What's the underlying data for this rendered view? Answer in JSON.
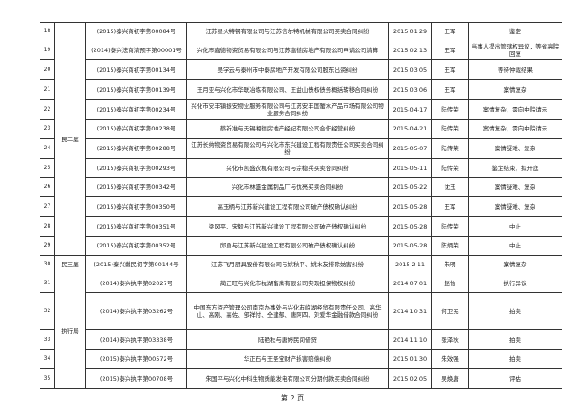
{
  "rows": [
    {
      "no": "18",
      "case": "(2015)泰兴商初字第00084号",
      "desc": "江苏星火特钢有限公司与江苏信尔特机械有限公司买卖合同纠纷",
      "date": "2015 01 29",
      "judge": "王军",
      "status": "鉴定"
    },
    {
      "no": "19",
      "case": "(2014)泰兴法商清预字第00001号",
      "desc": "兴化市嘉德物资贸易有限公司与江苏嘉德房地产有限公司申请公司清算",
      "date": "2015 02 13",
      "judge": "王军",
      "status": "当事人提出管辖权异议，等省高院回复"
    },
    {
      "no": "20",
      "case": "(2015)泰兴商初字第00134号",
      "desc": "吴学云与泰州市中泰房地产开发有限公司股东出资纠纷",
      "date": "2015 03 05",
      "judge": "王军",
      "status": "等待仲裁结果"
    },
    {
      "no": "21",
      "case": "(2015)泰兴商初字第00139号",
      "desc": "王月亚与兴化市华联冶炼有限公司、王益山债权债务概括转移合同纠纷",
      "date": "2015 03 06",
      "judge": "王军",
      "status": "案情复杂"
    },
    {
      "no": "22",
      "case": "(2015)泰兴商初字第00234号",
      "desc": "兴化市安丰镇振安物业服务有限公司与江苏安丰国蟹水产品市场有限公司物业服务合同纠纷",
      "date": "2015-04-17",
      "judge": "陆传荣",
      "status": "案情复杂，需向中院请示"
    },
    {
      "no": "23",
      "case": "(2015)泰兴商初字第00238号",
      "desc": "蔡祈准与无锡湘德房地产经纪有限公司合作经营纠纷",
      "date": "2015-04-21",
      "judge": "陆传荣",
      "status": "案情复杂，需向中院请示"
    },
    {
      "no": "24",
      "case": "(2015)泰兴商初字第00288号",
      "desc": "江苏长纳物资贸易有限公司与兴化市东兴建设工程有限责任公司买卖合同纠纷",
      "date": "2015-05-07",
      "judge": "陆传荣",
      "status": "案情疑难、复杂"
    },
    {
      "no": "25",
      "case": "(2015)泰兴商初字第00293号",
      "desc": "兴化市凯盛农机有限公司与宗稳兵买卖合同纠纷",
      "date": "2015-05-11",
      "judge": "陆传荣",
      "status": "鉴定结束，拟开庭"
    },
    {
      "no": "26",
      "case": "(2015)泰兴商初字第00342号",
      "desc": "兴化市林盛金属制品厂与优亮买卖合同纠纷",
      "date": "2015-05-22",
      "judge": "沈玉",
      "status": "案情疑难、复杂"
    },
    {
      "no": "27",
      "case": "(2015)泰兴商初字第00350号",
      "desc": "高玉柄与江苏新兴建设工程有限公司破产债权确认纠纷",
      "date": "2015-05-28",
      "judge": "王军",
      "status": "案情疑难、复杂"
    },
    {
      "no": "28",
      "case": "(2015)泰兴商初字第00351号",
      "desc": "梁风平、宋毅与江苏新兴建设工程有限公司破产债权确认纠纷",
      "date": "2015-05-28",
      "judge": "陆传荣",
      "status": "中止"
    },
    {
      "no": "29",
      "case": "(2015)泰兴商初字第00352号",
      "desc": "邱勇与江苏新兴建设工程有限公司破产债权确认纠纷",
      "date": "2015-05-28",
      "judge": "陈炳荣",
      "status": "中止"
    },
    {
      "no": "30",
      "case": "(2015)泰兴戴民初字第00144号",
      "desc": "江苏飞月厨具股份有限公司与姚秋平、姚水友排除妨害纠纷",
      "date": "2015 2 11",
      "judge": "朱明",
      "status": "案情复杂"
    },
    {
      "no": "31",
      "case": "(2014)泰兴执字第02027号",
      "desc": "蔺正旺与兴化市杭湖畜禽有限公司实现担保物权纠纷",
      "date": "2014 07 01",
      "judge": "赵恰",
      "status": "执行异议"
    },
    {
      "no": "32",
      "case": "(2014)泰兴执字第03262号",
      "desc": "中国东方资产管理公司南京办事处与兴化市临湖经贸有限责任公司、高华山、高刚、高佐、邹祥付、仝建郁、唐阿四、刘爱华金融借款合同纠纷",
      "date": "2014 10 31",
      "judge": "何卫民",
      "status": "拍卖"
    },
    {
      "no": "33",
      "case": "(2014)泰兴执字第03338号",
      "desc": "陆艳秋与唐婷民间借贷",
      "date": "2014 11 10",
      "judge": "张泽秋",
      "status": "拍卖"
    },
    {
      "no": "34",
      "case": "(2015)泰兴执字第00572号",
      "desc": "华正石与王圣宝财产损害赔偿纠纷",
      "date": "2015 01 30",
      "judge": "朱效强",
      "status": "拍卖"
    },
    {
      "no": "35",
      "case": "(2015)泰兴执字第00708号",
      "desc": "朱国平与兴化中科生物质能发电有限公司分期付款买卖合同纠纷",
      "date": "2015 02 05",
      "judge": "吴焕唐",
      "status": "评估"
    }
  ],
  "departments": [
    {
      "name": "民二庭",
      "first": "18",
      "last": "29"
    },
    {
      "name": "民三庭",
      "first": "30",
      "last": "30"
    },
    {
      "name": "执行局",
      "first": "31",
      "last": "35"
    }
  ],
  "footer": {
    "page": "第 2 页"
  }
}
